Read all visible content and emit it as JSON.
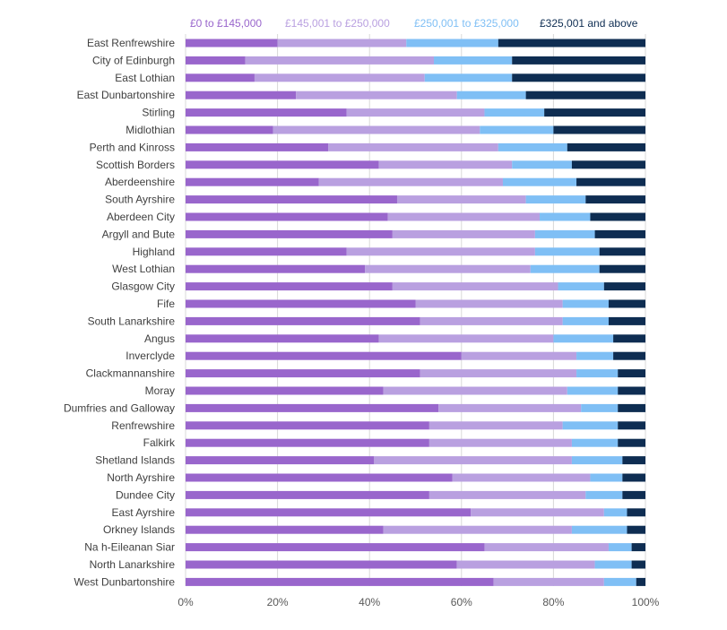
{
  "chart_data": {
    "type": "bar",
    "orientation": "horizontal",
    "stacked": "percent",
    "title": "",
    "xlabel": "",
    "ylabel": "",
    "xlim": [
      0,
      100
    ],
    "x_ticks": [
      "0%",
      "20%",
      "40%",
      "60%",
      "80%",
      "100%"
    ],
    "grid": true,
    "legend_position": "top",
    "categories": [
      "East Renfrewshire",
      "City of Edinburgh",
      "East Lothian",
      "East Dunbartonshire",
      "Stirling",
      "Midlothian",
      "Perth and Kinross",
      "Scottish Borders",
      "Aberdeenshire",
      "South Ayrshire",
      "Aberdeen City",
      "Argyll and Bute",
      "Highland",
      "West Lothian",
      "Glasgow City",
      "Fife",
      "South Lanarkshire",
      "Angus",
      "Inverclyde",
      "Clackmannanshire",
      "Moray",
      "Dumfries and Galloway",
      "Renfrewshire",
      "Falkirk",
      "Shetland Islands",
      "North Ayrshire",
      "Dundee City",
      "East Ayrshire",
      "Orkney Islands",
      "Na h-Eileanan Siar",
      "North Lanarkshire",
      "West Dunbartonshire"
    ],
    "series": [
      {
        "name": "£0 to £145,000",
        "color": "#9966CC",
        "values": [
          20,
          13,
          15,
          24,
          35,
          19,
          31,
          42,
          29,
          46,
          44,
          45,
          35,
          39,
          45,
          50,
          51,
          42,
          60,
          51,
          43,
          55,
          53,
          53,
          41,
          58,
          53,
          62,
          43,
          65,
          59,
          67
        ]
      },
      {
        "name": "£145,001 to £250,000",
        "color": "#B9A0E0",
        "values": [
          28,
          41,
          37,
          35,
          30,
          45,
          37,
          29,
          40,
          28,
          33,
          31,
          41,
          36,
          36,
          32,
          31,
          38,
          25,
          34,
          40,
          31,
          29,
          31,
          43,
          30,
          34,
          29,
          41,
          27,
          30,
          24
        ]
      },
      {
        "name": "£250,001 to £325,000",
        "color": "#7FBFF5",
        "values": [
          20,
          17,
          19,
          15,
          13,
          16,
          15,
          13,
          16,
          13,
          11,
          13,
          14,
          15,
          10,
          10,
          10,
          13,
          8,
          9,
          11,
          8,
          12,
          10,
          11,
          7,
          8,
          5,
          12,
          5,
          8,
          7
        ]
      },
      {
        "name": "£325,001 and above",
        "color": "#0E2D52",
        "values": [
          32,
          29,
          29,
          26,
          22,
          20,
          17,
          16,
          15,
          13,
          12,
          11,
          10,
          10,
          9,
          8,
          8,
          7,
          7,
          6,
          6,
          6,
          6,
          6,
          5,
          5,
          5,
          4,
          4,
          3,
          3,
          2
        ]
      }
    ]
  }
}
